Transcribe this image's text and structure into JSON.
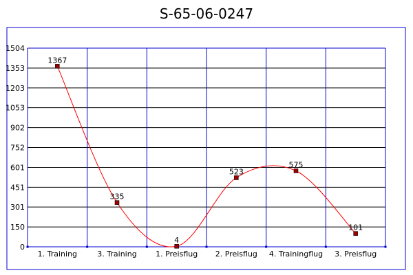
{
  "chart_data": {
    "type": "line",
    "title": "S-65-06-0247",
    "xlabel": "",
    "ylabel": "",
    "categories": [
      "1. Training",
      "3. Training",
      "1. Preisflug",
      "2. Preisflug",
      "4. Trainingflug",
      "3. Preisflug"
    ],
    "series": [
      {
        "values": [
          1367,
          335,
          4,
          523,
          575,
          101
        ],
        "color": "#ff0000"
      }
    ],
    "data_labels": [
      "1367",
      "335",
      "4",
      "523",
      "575",
      "101"
    ],
    "yticks": [
      "0",
      "150",
      "301",
      "451",
      "601",
      "752",
      "902",
      "1053",
      "1203",
      "1353",
      "1504"
    ],
    "ylim": [
      0,
      1504
    ],
    "grid": true,
    "smooth": true,
    "colors": {
      "grid": "#0000cc",
      "line": "#ff0000",
      "marker_fill": "#990000",
      "frame": "#0000cc"
    }
  }
}
